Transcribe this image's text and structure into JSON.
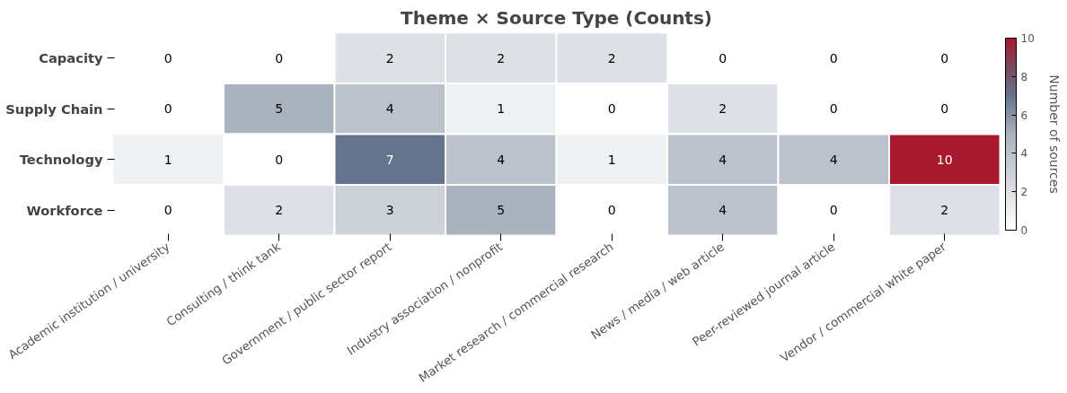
{
  "chart_data": {
    "type": "heatmap",
    "title": "Theme × Source Type (Counts)",
    "clabel": "Number of sources",
    "categories": [
      "Academic institution / university",
      "Consulting / think tank",
      "Government / public sector report",
      "Industry association / nonprofit",
      "Market research / commercial research",
      "News / media / web article",
      "Peer-reviewed journal article",
      "Vendor / commercial white paper"
    ],
    "y_categories": [
      "Capacity",
      "Supply Chain",
      "Technology",
      "Workforce"
    ],
    "cells": [
      [
        0,
        0,
        2,
        2,
        2,
        0,
        0,
        0
      ],
      [
        0,
        5,
        4,
        1,
        0,
        2,
        0,
        0
      ],
      [
        1,
        0,
        7,
        4,
        1,
        4,
        4,
        10
      ],
      [
        0,
        2,
        3,
        5,
        0,
        4,
        0,
        2
      ]
    ],
    "clim": [
      0,
      10
    ],
    "cticks": [
      0,
      2,
      4,
      6,
      8,
      10
    ],
    "data_labels": true
  }
}
